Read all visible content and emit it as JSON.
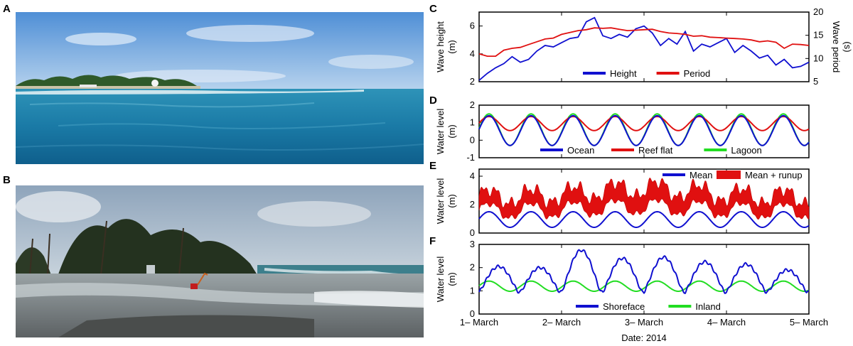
{
  "panels": {
    "A": "A",
    "B": "B",
    "C": "C",
    "D": "D",
    "E": "E",
    "F": "F"
  },
  "photos": {
    "A": {
      "subject": "reef-island-ocean-photo"
    },
    "B": {
      "subject": "flooded-island-shore-photo"
    }
  },
  "chart_data": [
    {
      "panel": "C",
      "type": "line",
      "ylabel": "Wave height\n(m)",
      "y2label": "Wave period\n(s)",
      "ylim": [
        2,
        7
      ],
      "y2lim": [
        5,
        20
      ],
      "yticks": [
        "2",
        "4",
        "6"
      ],
      "y2ticks": [
        "5",
        "10",
        "15",
        "20"
      ],
      "xlim": [
        0,
        4
      ],
      "legend": [
        "Height",
        "Period"
      ],
      "legend_position": "bottom-center",
      "series": [
        {
          "name": "Height",
          "color": "#1010d0",
          "axis": "left",
          "x": [
            0.0,
            0.1,
            0.2,
            0.3,
            0.4,
            0.5,
            0.6,
            0.7,
            0.8,
            0.9,
            1.0,
            1.1,
            1.2,
            1.3,
            1.4,
            1.5,
            1.6,
            1.7,
            1.8,
            1.9,
            2.0,
            2.1,
            2.2,
            2.3,
            2.4,
            2.5,
            2.6,
            2.7,
            2.8,
            2.9,
            3.0,
            3.1,
            3.2,
            3.3,
            3.4,
            3.5,
            3.6,
            3.7,
            3.8,
            3.9,
            4.0
          ],
          "y": [
            2.1,
            2.6,
            3.0,
            3.3,
            3.8,
            3.4,
            3.6,
            4.2,
            4.6,
            4.5,
            4.8,
            5.1,
            5.2,
            6.3,
            6.6,
            5.3,
            5.1,
            5.4,
            5.2,
            5.8,
            6.0,
            5.5,
            4.6,
            5.1,
            4.7,
            5.6,
            4.2,
            4.7,
            4.5,
            4.8,
            5.1,
            4.1,
            4.6,
            4.2,
            3.7,
            3.9,
            3.2,
            3.6,
            3.0,
            3.1,
            3.4
          ]
        },
        {
          "name": "Period",
          "color": "#e01010",
          "axis": "right",
          "x": [
            0.0,
            0.1,
            0.2,
            0.3,
            0.4,
            0.5,
            0.6,
            0.7,
            0.8,
            0.9,
            1.0,
            1.1,
            1.2,
            1.3,
            1.4,
            1.5,
            1.6,
            1.7,
            1.8,
            1.9,
            2.0,
            2.1,
            2.2,
            2.3,
            2.4,
            2.5,
            2.6,
            2.7,
            2.8,
            2.9,
            3.0,
            3.1,
            3.2,
            3.3,
            3.4,
            3.5,
            3.6,
            3.7,
            3.8,
            3.9,
            4.0
          ],
          "y": [
            11.0,
            10.5,
            10.5,
            11.8,
            12.2,
            12.4,
            13.0,
            13.6,
            14.2,
            14.4,
            15.2,
            15.6,
            16.0,
            16.2,
            16.6,
            16.5,
            16.6,
            16.3,
            16.0,
            16.1,
            16.2,
            16.3,
            15.8,
            15.5,
            15.4,
            15.2,
            14.8,
            14.9,
            14.6,
            14.5,
            14.4,
            14.3,
            14.2,
            14.0,
            13.6,
            13.8,
            13.5,
            12.2,
            13.1,
            13.0,
            12.8
          ]
        }
      ]
    },
    {
      "panel": "D",
      "type": "line",
      "ylabel": "Water level\n(m)",
      "ylim": [
        -1,
        2
      ],
      "yticks": [
        "-1",
        "0",
        "1",
        "2"
      ],
      "xlim": [
        0,
        4
      ],
      "legend": [
        "Ocean",
        "Reef flat",
        "Lagoon"
      ],
      "legend_position": "bottom-center",
      "series": [
        {
          "name": "Ocean",
          "color": "#1010d0",
          "mean": 0.55,
          "amp": 0.85,
          "period": 0.51,
          "phase": 0.0
        },
        {
          "name": "Reef flat",
          "color": "#e01010",
          "mean": 0.95,
          "amp": 0.4,
          "period": 0.51,
          "phase": 0.0
        },
        {
          "name": "Lagoon",
          "color": "#22dd22",
          "mean": 0.6,
          "amp": 0.9,
          "period": 0.51,
          "phase": 0.0
        }
      ]
    },
    {
      "panel": "E",
      "type": "area",
      "ylabel": "Water level\n(m)",
      "ylim": [
        0,
        4.5
      ],
      "yticks": [
        "0",
        "2",
        "4"
      ],
      "xlim": [
        0,
        4
      ],
      "legend": [
        "Mean",
        "Mean + runup"
      ],
      "legend_position": "top-right",
      "series": [
        {
          "name": "Mean",
          "color": "#1010d0",
          "mean": 0.95,
          "amp": 0.55,
          "period": 0.51
        },
        {
          "name": "Mean + runup",
          "color": "#e01010",
          "low_offset": 0.6,
          "high_offset": 1.6
        }
      ]
    },
    {
      "panel": "F",
      "type": "line",
      "ylabel": "Water level\n(m)",
      "ylim": [
        0,
        3
      ],
      "yticks": [
        "0",
        "1",
        "2",
        "3"
      ],
      "xlim": [
        0,
        4
      ],
      "xticks": [
        "1– March",
        "2– March",
        "3– March",
        "4– March",
        "5– March"
      ],
      "xlabel": "Date: 2014",
      "legend": [
        "Shoreface",
        "Inland"
      ],
      "legend_position": "bottom-center",
      "series": [
        {
          "name": "Shoreface",
          "color": "#1010d0",
          "peaks": [
            2.05,
            2.0,
            2.75,
            2.4,
            2.45,
            2.25,
            2.15,
            1.9
          ]
        },
        {
          "name": "Inland",
          "color": "#22dd22",
          "mean": 1.2,
          "amp": 0.22,
          "period": 0.51
        }
      ]
    }
  ]
}
